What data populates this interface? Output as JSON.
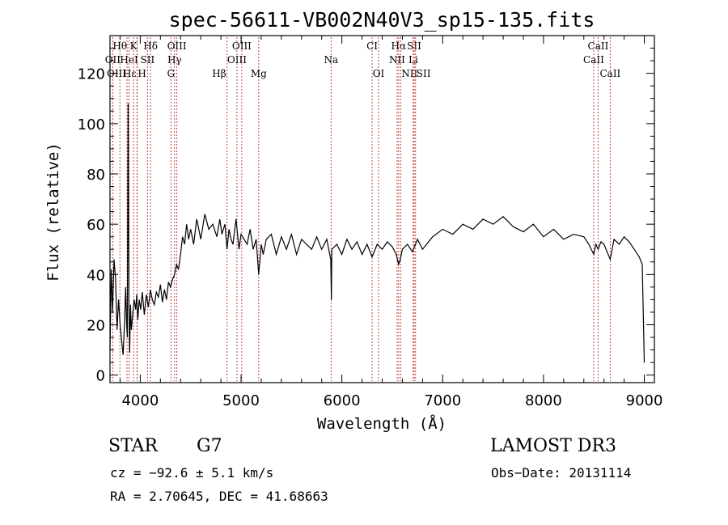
{
  "chart_data": {
    "type": "line",
    "title": "spec-56611-VB002N40V3_sp15-135.fits",
    "xlabel": "Wavelength (Å)",
    "ylabel": "Flux (relative)",
    "xlim": [
      3700,
      9100
    ],
    "ylim": [
      -3,
      135
    ],
    "xticks": [
      4000,
      5000,
      6000,
      7000,
      8000,
      9000
    ],
    "yticks": [
      0,
      20,
      40,
      60,
      80,
      100,
      120
    ],
    "series": [
      {
        "name": "spectrum",
        "x": [
          3700,
          3712,
          3725,
          3740,
          3755,
          3770,
          3785,
          3800,
          3815,
          3830,
          3845,
          3855,
          3865,
          3872,
          3880,
          3888,
          3895,
          3903,
          3912,
          3925,
          3940,
          3955,
          3965,
          3975,
          3990,
          4005,
          4020,
          4040,
          4060,
          4080,
          4100,
          4120,
          4140,
          4160,
          4180,
          4200,
          4220,
          4240,
          4260,
          4280,
          4300,
          4320,
          4340,
          4360,
          4380,
          4400,
          4420,
          4440,
          4460,
          4480,
          4500,
          4530,
          4560,
          4600,
          4640,
          4680,
          4720,
          4760,
          4790,
          4810,
          4840,
          4861,
          4880,
          4900,
          4920,
          4950,
          4980,
          5000,
          5030,
          5060,
          5090,
          5120,
          5150,
          5175,
          5200,
          5220,
          5250,
          5300,
          5350,
          5400,
          5450,
          5500,
          5550,
          5600,
          5650,
          5700,
          5750,
          5800,
          5850,
          5890,
          5896,
          5900,
          5950,
          6000,
          6050,
          6100,
          6150,
          6200,
          6250,
          6300,
          6350,
          6400,
          6450,
          6500,
          6540,
          6563,
          6580,
          6600,
          6650,
          6700,
          6750,
          6800,
          6900,
          7000,
          7100,
          7200,
          7300,
          7400,
          7500,
          7600,
          7700,
          7800,
          7900,
          8000,
          8100,
          8200,
          8300,
          8400,
          8450,
          8498,
          8520,
          8542,
          8570,
          8600,
          8662,
          8700,
          8750,
          8800,
          8850,
          8900,
          8950,
          8980,
          9000
        ],
        "values": [
          10,
          42,
          25,
          46,
          38,
          18,
          30,
          20,
          14,
          8,
          22,
          35,
          20,
          15,
          108,
          28,
          9,
          28,
          18,
          24,
          30,
          26,
          32,
          22,
          30,
          26,
          33,
          24,
          32,
          27,
          34,
          30,
          28,
          33,
          31,
          36,
          29,
          34,
          30,
          37,
          35,
          38,
          40,
          44,
          42,
          48,
          55,
          52,
          60,
          54,
          58,
          52,
          62,
          54,
          64,
          58,
          60,
          55,
          62,
          56,
          60,
          50,
          58,
          54,
          52,
          62,
          50,
          56,
          54,
          52,
          58,
          50,
          54,
          40,
          52,
          48,
          54,
          56,
          48,
          55,
          50,
          56,
          48,
          54,
          52,
          50,
          55,
          50,
          54,
          46,
          30,
          50,
          52,
          48,
          54,
          50,
          53,
          48,
          52,
          47,
          52,
          50,
          53,
          51,
          48,
          44,
          46,
          50,
          52,
          49,
          54,
          50,
          55,
          58,
          56,
          60,
          58,
          62,
          60,
          63,
          59,
          57,
          60,
          55,
          58,
          54,
          56,
          55,
          52,
          48,
          52,
          50,
          53,
          52,
          46,
          54,
          52,
          55,
          53,
          50,
          47,
          44,
          5
        ]
      }
    ],
    "line_markers": [
      {
        "label": "Hθ",
        "x": 3798,
        "row": 1,
        "ha": "center"
      },
      {
        "label": "K",
        "x": 3934,
        "row": 1,
        "ha": "center"
      },
      {
        "label": "Hδ",
        "x": 4102,
        "row": 1,
        "ha": "center"
      },
      {
        "label": "OIII",
        "x": 4363,
        "row": 1,
        "ha": "center"
      },
      {
        "label": "OIII",
        "x": 5007,
        "row": 1,
        "ha": "center"
      },
      {
        "label": "CI",
        "x": 6300,
        "row": 1,
        "ha": "center"
      },
      {
        "label": "Hα",
        "x": 6563,
        "row": 1,
        "ha": "center"
      },
      {
        "label": "SII",
        "x": 6717,
        "row": 1,
        "ha": "center"
      },
      {
        "label": "CaII",
        "x": 8542,
        "row": 1,
        "ha": "center"
      },
      {
        "label": "OII",
        "x": 3727,
        "row": 2,
        "ha": "center"
      },
      {
        "label": "HeI",
        "x": 3889,
        "row": 2,
        "ha": "center"
      },
      {
        "label": "SII",
        "x": 4072,
        "row": 2,
        "ha": "center"
      },
      {
        "label": "Hγ",
        "x": 4340,
        "row": 2,
        "ha": "center"
      },
      {
        "label": "OIII",
        "x": 4959,
        "row": 2,
        "ha": "center"
      },
      {
        "label": "Na",
        "x": 5893,
        "row": 2,
        "ha": "center"
      },
      {
        "label": "NII",
        "x": 6548,
        "row": 2,
        "ha": "center"
      },
      {
        "label": "Li",
        "x": 6708,
        "row": 2,
        "ha": "center"
      },
      {
        "label": "CaII",
        "x": 8498,
        "row": 2,
        "ha": "center"
      },
      {
        "label": "OIII",
        "x": 3869,
        "row": 3,
        "ha": "right"
      },
      {
        "label": "Hε",
        "x": 3970,
        "row": 3,
        "ha": "right"
      },
      {
        "label": "H",
        "x": 3968,
        "row": 3,
        "ha": "left"
      },
      {
        "label": "G",
        "x": 4304,
        "row": 3,
        "ha": "center"
      },
      {
        "label": "Hβ",
        "x": 4861,
        "row": 3,
        "ha": "right"
      },
      {
        "label": "Mg",
        "x": 5175,
        "row": 3,
        "ha": "center"
      },
      {
        "label": "OI",
        "x": 6364,
        "row": 3,
        "ha": "center"
      },
      {
        "label": "NII",
        "x": 6583,
        "row": 3,
        "ha": "left"
      },
      {
        "label": "SII",
        "x": 6731,
        "row": 3,
        "ha": "left"
      },
      {
        "label": "CaII",
        "x": 8662,
        "row": 3,
        "ha": "center"
      }
    ]
  },
  "info": {
    "object_class": "STAR",
    "subclass": "G7",
    "cz": "cz = −92.6 ± 5.1 km/s",
    "radec": "RA =   2.70645, DEC =  41.68663",
    "survey": "LAMOST DR3",
    "obs_date": "Obs−Date: 20131114"
  },
  "colors": {
    "spectrum": "#000000",
    "marker_line": "#c03030",
    "axis": "#000000"
  }
}
